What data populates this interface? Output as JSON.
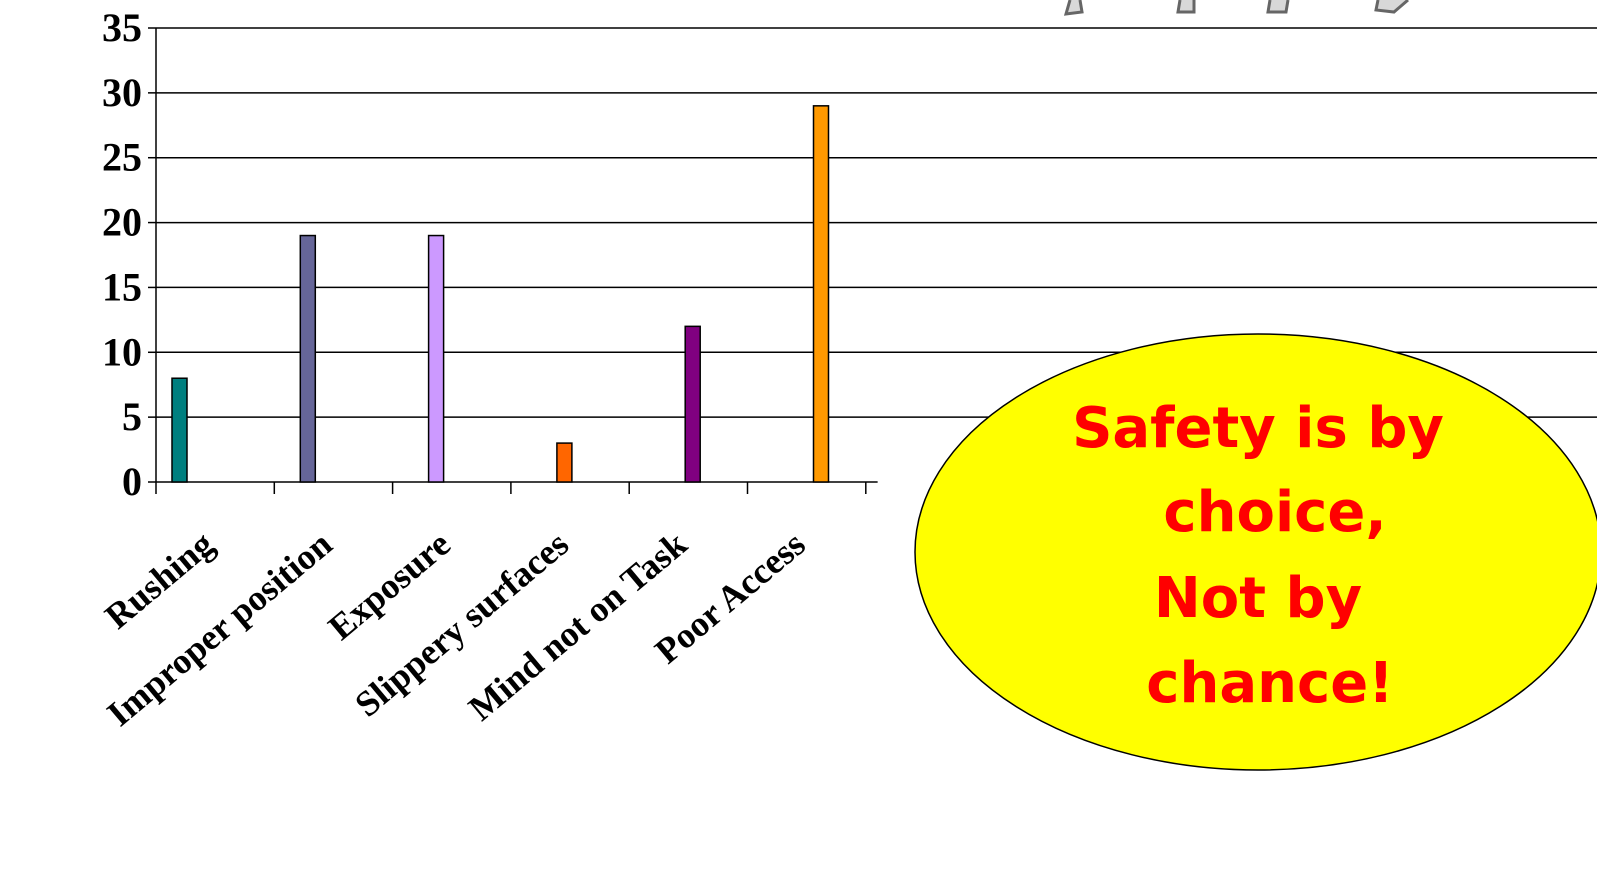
{
  "chart_data": {
    "type": "bar",
    "categories": [
      "Rushing",
      "Improper position",
      "Exposure",
      "Slippery surfaces",
      "Mind not on Task",
      "Poor Access"
    ],
    "values": [
      8,
      19,
      19,
      3,
      12,
      29
    ],
    "colors": [
      "#007f7f",
      "#666699",
      "#cc99ff",
      "#ff6600",
      "#800080",
      "#ff9900"
    ],
    "yticks": [
      0,
      5,
      10,
      15,
      20,
      25,
      30,
      35
    ],
    "ylim": [
      0,
      35
    ],
    "grid": true
  },
  "callout": {
    "lines": [
      "Safety is by",
      "choice,",
      "Not by",
      "chance!"
    ],
    "fill": "#ffff00",
    "text_color": "#ff0000"
  }
}
